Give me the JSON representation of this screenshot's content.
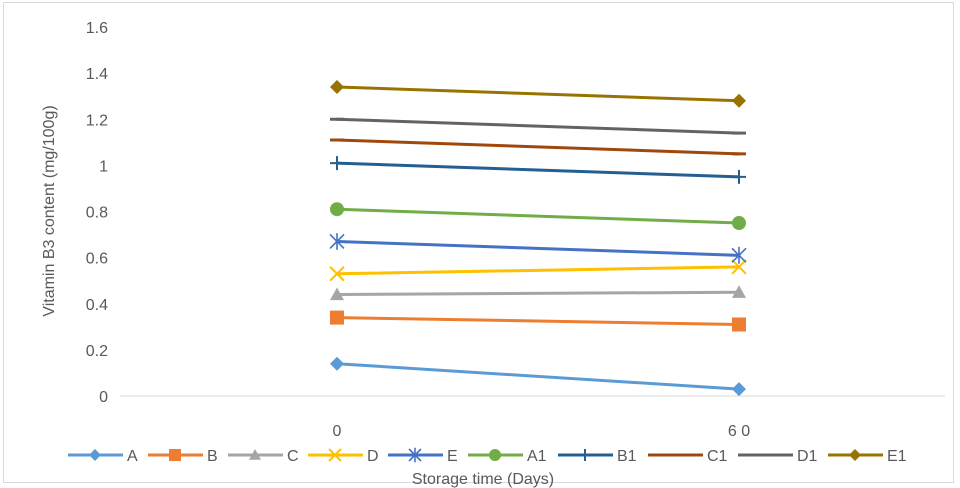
{
  "chart_data": {
    "type": "line",
    "title": "",
    "xlabel": "Storage time (Days)",
    "ylabel": "Vitamin B3 content (mg/100g)",
    "categories": [
      "0",
      "60"
    ],
    "category_labels": [
      "0",
      "6 0"
    ],
    "ylim": [
      0,
      1.6
    ],
    "yticks": [
      0,
      0.2,
      0.4,
      0.6,
      0.8,
      1,
      1.2,
      1.4,
      1.6
    ],
    "ytick_labels": [
      "0",
      "0.2",
      "0.4",
      "0.6",
      "0.8",
      "1",
      "1.2",
      "1.4",
      "1.6"
    ],
    "grid": false,
    "legend_position": "bottom",
    "series": [
      {
        "name": "A",
        "values": [
          0.14,
          0.03
        ],
        "color": "#5b9bd5",
        "marker": "diamond"
      },
      {
        "name": "B",
        "values": [
          0.34,
          0.31
        ],
        "color": "#ed7d31",
        "marker": "square"
      },
      {
        "name": "C",
        "values": [
          0.44,
          0.45
        ],
        "color": "#a5a5a5",
        "marker": "triangle"
      },
      {
        "name": "D",
        "values": [
          0.53,
          0.56
        ],
        "color": "#ffc000",
        "marker": "x"
      },
      {
        "name": "E",
        "values": [
          0.67,
          0.61
        ],
        "color": "#4472c4",
        "marker": "star"
      },
      {
        "name": "A1",
        "values": [
          0.81,
          0.75
        ],
        "color": "#70ad47",
        "marker": "circle"
      },
      {
        "name": "B1",
        "values": [
          1.01,
          0.95
        ],
        "color": "#255e91",
        "marker": "plus"
      },
      {
        "name": "C1",
        "values": [
          1.11,
          1.05
        ],
        "color": "#9e480e",
        "marker": "dash"
      },
      {
        "name": "D1",
        "values": [
          1.2,
          1.14
        ],
        "color": "#636363",
        "marker": "dash"
      },
      {
        "name": "E1",
        "values": [
          1.34,
          1.28
        ],
        "color": "#997300",
        "marker": "diamond"
      }
    ]
  }
}
